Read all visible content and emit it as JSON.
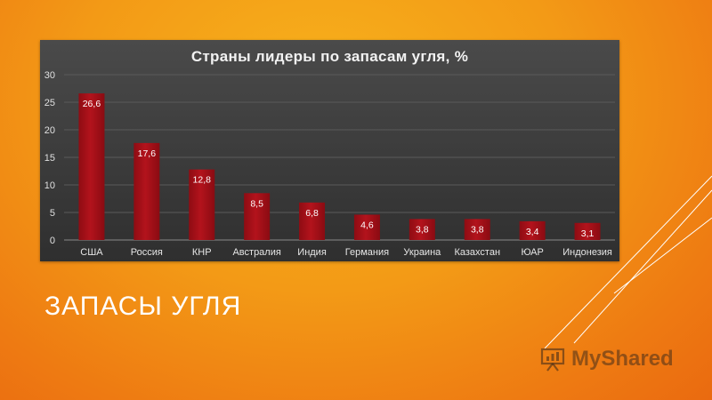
{
  "slide": {
    "title": "ЗАПАСЫ УГЛЯ",
    "logo_text": "MyShared",
    "colors": {
      "bar": "#b3131c",
      "panel": "#3a3a3a",
      "accent": "#ffffff"
    }
  },
  "chart_data": {
    "type": "bar",
    "title": "Страны лидеры по запасам угля, %",
    "xlabel": "",
    "ylabel": "",
    "categories": [
      "США",
      "Россия",
      "КНР",
      "Австралия",
      "Индия",
      "Германия",
      "Украина",
      "Казахстан",
      "ЮАР",
      "Индонезия"
    ],
    "values": [
      26.6,
      17.6,
      12.8,
      8.5,
      6.8,
      4.6,
      3.8,
      3.8,
      3.4,
      3.1
    ],
    "data_labels": [
      "26,6",
      "17,6",
      "12,8",
      "8,5",
      "6,8",
      "4,6",
      "3,8",
      "3,8",
      "3,4",
      "3,1"
    ],
    "y_ticks": [
      0,
      5,
      10,
      15,
      20,
      25,
      30
    ],
    "ylim": [
      0,
      30
    ],
    "grid": true,
    "legend": "none"
  }
}
